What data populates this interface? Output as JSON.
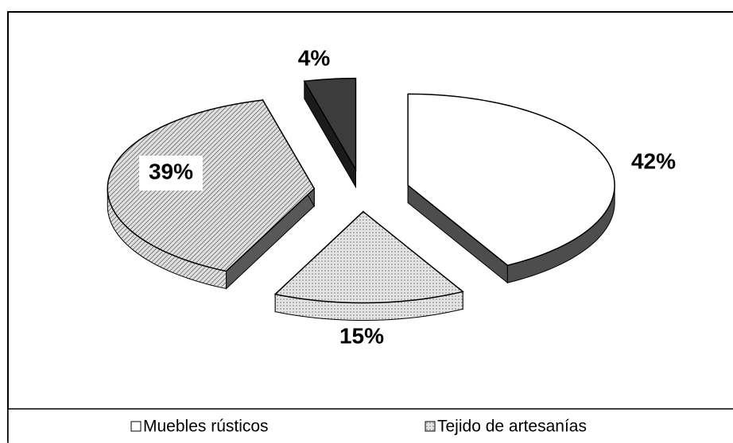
{
  "chart_data": {
    "type": "pie3d",
    "categories": [
      "Muebles rústicos",
      "Tejido de artesanías",
      null,
      null
    ],
    "values": [
      42,
      15,
      39,
      4
    ],
    "value_labels": [
      "42%",
      "15%",
      "39%",
      "4%"
    ],
    "colors": [
      "#ffffff",
      "#d6d6d6",
      "#c4c4c4",
      "#3c3c3c"
    ],
    "legend": "bottom"
  }
}
